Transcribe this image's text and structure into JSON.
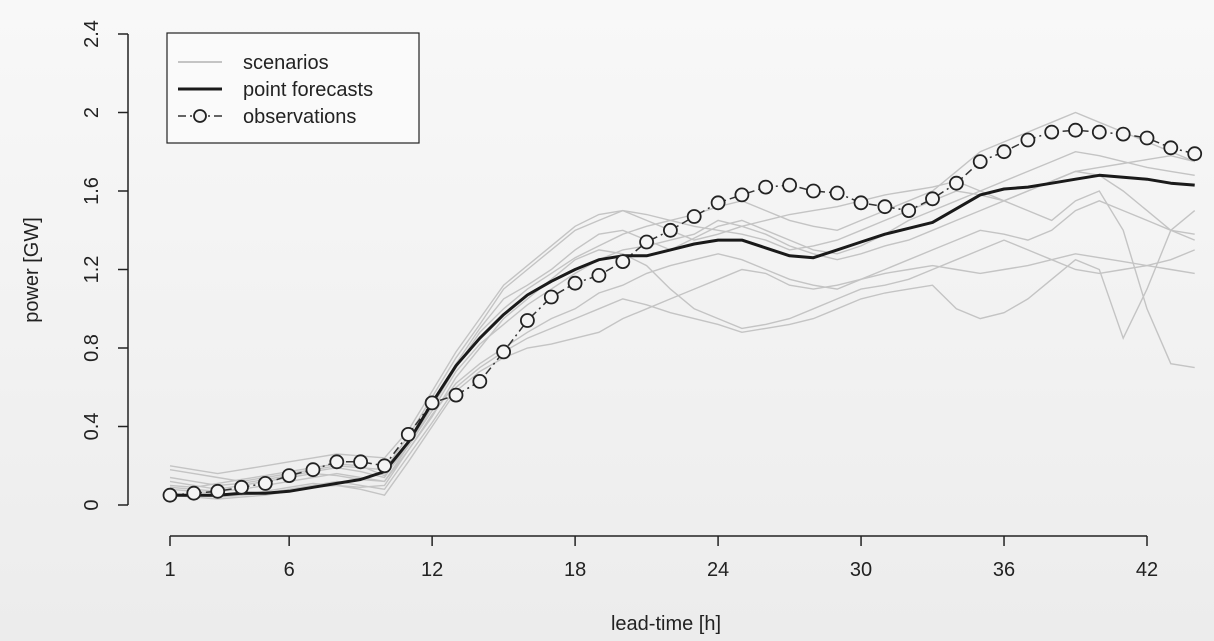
{
  "chart_data": {
    "type": "line",
    "title": "",
    "xlabel": "lead-time [h]",
    "ylabel": "power [GW]",
    "xlim": [
      1,
      44
    ],
    "ylim": [
      0,
      2.4
    ],
    "x_ticks": [
      1,
      6,
      12,
      18,
      24,
      30,
      36,
      42
    ],
    "y_ticks": [
      0,
      0.4,
      0.8,
      1.2,
      1.6,
      2,
      2.4
    ],
    "y_tick_labels": [
      "0",
      "0.4",
      "0.8",
      "1.2",
      "1.6",
      "2",
      "2.4"
    ],
    "grid": false,
    "legend": {
      "placement": "top-left",
      "entries": [
        {
          "label": "scenarios",
          "style": "thin light gray line"
        },
        {
          "label": "point forecasts",
          "style": "thick black line"
        },
        {
          "label": "observations",
          "style": "dash-dot line with open circles"
        }
      ]
    },
    "colors": {
      "scenarios": "#c4c4c4",
      "point_forecasts": "#1a1a1a",
      "observations": "#333333"
    },
    "x": [
      1,
      2,
      3,
      4,
      5,
      6,
      7,
      8,
      9,
      10,
      11,
      12,
      13,
      14,
      15,
      16,
      17,
      18,
      19,
      20,
      21,
      22,
      23,
      24,
      25,
      26,
      27,
      28,
      29,
      30,
      31,
      32,
      33,
      34,
      35,
      36,
      37,
      38,
      39,
      40,
      41,
      42,
      43,
      44
    ],
    "series": [
      {
        "name": "point forecasts",
        "values": [
          0.05,
          0.05,
          0.05,
          0.06,
          0.06,
          0.07,
          0.09,
          0.11,
          0.13,
          0.17,
          0.32,
          0.52,
          0.71,
          0.85,
          0.97,
          1.07,
          1.14,
          1.2,
          1.25,
          1.27,
          1.27,
          1.3,
          1.33,
          1.35,
          1.35,
          1.31,
          1.27,
          1.26,
          1.3,
          1.34,
          1.38,
          1.41,
          1.44,
          1.51,
          1.58,
          1.61,
          1.62,
          1.64,
          1.66,
          1.68,
          1.67,
          1.66,
          1.64,
          1.63
        ]
      },
      {
        "name": "observations",
        "values": [
          0.05,
          0.06,
          0.07,
          0.09,
          0.11,
          0.15,
          0.18,
          0.22,
          0.22,
          0.2,
          0.36,
          0.52,
          0.56,
          0.63,
          0.78,
          0.94,
          1.06,
          1.13,
          1.17,
          1.24,
          1.34,
          1.4,
          1.47,
          1.54,
          1.58,
          1.62,
          1.63,
          1.6,
          1.59,
          1.54,
          1.52,
          1.5,
          1.56,
          1.64,
          1.75,
          1.8,
          1.86,
          1.9,
          1.91,
          1.9,
          1.89,
          1.87,
          1.82,
          1.79
        ]
      },
      {
        "name": "",
        "values": [
          0.12,
          0.1,
          0.08,
          0.1,
          0.12,
          0.14,
          0.16,
          0.15,
          0.13,
          0.12,
          0.3,
          0.5,
          0.72,
          0.9,
          1.05,
          1.12,
          1.2,
          1.3,
          1.38,
          1.4,
          1.35,
          1.3,
          1.36,
          1.42,
          1.45,
          1.4,
          1.35,
          1.3,
          1.28,
          1.32,
          1.38,
          1.45,
          1.5,
          1.55,
          1.6,
          1.65,
          1.7,
          1.75,
          1.8,
          1.78,
          1.75,
          1.72,
          1.7,
          1.68
        ]
      },
      {
        "name": "",
        "values": [
          0.08,
          0.07,
          0.06,
          0.05,
          0.07,
          0.09,
          0.11,
          0.1,
          0.09,
          0.1,
          0.28,
          0.45,
          0.65,
          0.8,
          0.95,
          1.05,
          1.15,
          1.25,
          1.3,
          1.28,
          1.22,
          1.1,
          1.0,
          0.95,
          0.9,
          0.92,
          0.95,
          1.0,
          1.05,
          1.1,
          1.12,
          1.15,
          1.2,
          1.25,
          1.3,
          1.35,
          1.3,
          1.25,
          1.2,
          1.18,
          1.2,
          1.22,
          1.25,
          1.3
        ]
      },
      {
        "name": "",
        "values": [
          0.18,
          0.16,
          0.14,
          0.12,
          0.14,
          0.16,
          0.18,
          0.2,
          0.19,
          0.18,
          0.35,
          0.55,
          0.75,
          0.92,
          1.1,
          1.2,
          1.3,
          1.4,
          1.45,
          1.5,
          1.48,
          1.45,
          1.48,
          1.52,
          1.55,
          1.5,
          1.45,
          1.42,
          1.4,
          1.45,
          1.5,
          1.55,
          1.6,
          1.7,
          1.8,
          1.85,
          1.9,
          1.95,
          2.0,
          1.95,
          1.9,
          1.85,
          1.8,
          1.75
        ]
      },
      {
        "name": "",
        "values": [
          0.05,
          0.04,
          0.03,
          0.04,
          0.05,
          0.07,
          0.09,
          0.1,
          0.08,
          0.05,
          0.22,
          0.4,
          0.58,
          0.68,
          0.75,
          0.8,
          0.82,
          0.85,
          0.88,
          0.95,
          1.0,
          1.05,
          1.1,
          1.15,
          1.2,
          1.18,
          1.12,
          1.1,
          1.12,
          1.15,
          1.18,
          1.2,
          1.22,
          1.2,
          1.18,
          1.2,
          1.22,
          1.25,
          1.28,
          1.26,
          1.24,
          1.22,
          1.2,
          1.18
        ]
      },
      {
        "name": "",
        "values": [
          0.1,
          0.09,
          0.11,
          0.13,
          0.15,
          0.17,
          0.19,
          0.21,
          0.2,
          0.15,
          0.3,
          0.48,
          0.68,
          0.82,
          0.92,
          1.02,
          1.1,
          1.18,
          1.25,
          1.3,
          1.32,
          1.35,
          1.38,
          1.45,
          1.42,
          1.38,
          1.32,
          1.28,
          1.25,
          1.28,
          1.32,
          1.35,
          1.4,
          1.45,
          1.5,
          1.55,
          1.6,
          1.65,
          1.7,
          1.68,
          1.6,
          1.5,
          1.4,
          1.35
        ]
      },
      {
        "name": "",
        "values": [
          0.14,
          0.12,
          0.1,
          0.11,
          0.13,
          0.15,
          0.17,
          0.19,
          0.17,
          0.14,
          0.32,
          0.5,
          0.7,
          0.88,
          1.0,
          1.1,
          1.18,
          1.26,
          1.32,
          1.38,
          1.42,
          1.45,
          1.42,
          1.4,
          1.38,
          1.35,
          1.3,
          1.32,
          1.35,
          1.4,
          1.45,
          1.5,
          1.55,
          1.6,
          1.58,
          1.55,
          1.6,
          1.65,
          1.7,
          1.72,
          1.74,
          1.76,
          1.78,
          1.75
        ]
      },
      {
        "name": "",
        "values": [
          0.06,
          0.05,
          0.04,
          0.05,
          0.06,
          0.08,
          0.1,
          0.12,
          0.1,
          0.08,
          0.25,
          0.42,
          0.6,
          0.7,
          0.78,
          0.85,
          0.9,
          0.95,
          1.0,
          1.05,
          1.02,
          0.98,
          0.95,
          0.92,
          0.88,
          0.9,
          0.92,
          0.95,
          1.0,
          1.05,
          1.08,
          1.1,
          1.12,
          1.0,
          0.95,
          0.98,
          1.05,
          1.15,
          1.25,
          1.2,
          0.85,
          1.1,
          1.4,
          1.5
        ]
      },
      {
        "name": "",
        "values": [
          0.2,
          0.18,
          0.16,
          0.18,
          0.2,
          0.22,
          0.24,
          0.26,
          0.25,
          0.24,
          0.38,
          0.58,
          0.78,
          0.95,
          1.12,
          1.22,
          1.32,
          1.42,
          1.48,
          1.5,
          1.45,
          1.4,
          1.35,
          1.38,
          1.42,
          1.45,
          1.48,
          1.5,
          1.52,
          1.55,
          1.58,
          1.6,
          1.62,
          1.65,
          1.6,
          1.55,
          1.5,
          1.45,
          1.55,
          1.6,
          1.4,
          1.0,
          0.72,
          0.7
        ]
      },
      {
        "name": "",
        "values": [
          0.09,
          0.08,
          0.07,
          0.08,
          0.1,
          0.12,
          0.14,
          0.16,
          0.14,
          0.12,
          0.28,
          0.46,
          0.62,
          0.72,
          0.8,
          0.88,
          0.95,
          1.0,
          1.08,
          1.12,
          1.18,
          1.22,
          1.25,
          1.28,
          1.25,
          1.2,
          1.15,
          1.12,
          1.1,
          1.15,
          1.2,
          1.25,
          1.3,
          1.35,
          1.4,
          1.38,
          1.35,
          1.4,
          1.5,
          1.55,
          1.5,
          1.45,
          1.4,
          1.38
        ]
      }
    ]
  }
}
